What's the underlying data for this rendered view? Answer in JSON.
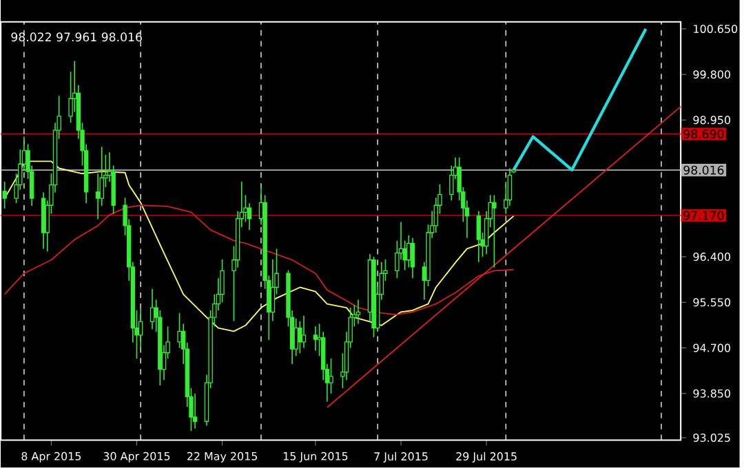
{
  "chart_data": {
    "type": "candlestick",
    "color": "#33ee33",
    "x": [
      "2015-03-27",
      "2015-03-30",
      "2015-03-31",
      "2015-04-01",
      "2015-04-02",
      "2015-04-03",
      "2015-04-06",
      "2015-04-07",
      "2015-04-08",
      "2015-04-09",
      "2015-04-10",
      "2015-04-13",
      "2015-04-14",
      "2015-04-15",
      "2015-04-16",
      "2015-04-17",
      "2015-04-20",
      "2015-04-21",
      "2015-04-22",
      "2015-04-23",
      "2015-04-24",
      "2015-04-27",
      "2015-04-28",
      "2015-04-29",
      "2015-04-30",
      "2015-05-01",
      "2015-05-04",
      "2015-05-05",
      "2015-05-06",
      "2015-05-07",
      "2015-05-08",
      "2015-05-11",
      "2015-05-12",
      "2015-05-13",
      "2015-05-14",
      "2015-05-15",
      "2015-05-18",
      "2015-05-19",
      "2015-05-20",
      "2015-05-21",
      "2015-05-22",
      "2015-05-25",
      "2015-05-26",
      "2015-05-27",
      "2015-05-28",
      "2015-05-29",
      "2015-06-01",
      "2015-06-02",
      "2015-06-03",
      "2015-06-04",
      "2015-06-05",
      "2015-06-08",
      "2015-06-09",
      "2015-06-10",
      "2015-06-11",
      "2015-06-12",
      "2015-06-15",
      "2015-06-16",
      "2015-06-17",
      "2015-06-18",
      "2015-06-19",
      "2015-06-22",
      "2015-06-23",
      "2015-06-24",
      "2015-06-25",
      "2015-06-26",
      "2015-06-29",
      "2015-06-30",
      "2015-07-01",
      "2015-07-02",
      "2015-07-03",
      "2015-07-06",
      "2015-07-07",
      "2015-07-08",
      "2015-07-09",
      "2015-07-10",
      "2015-07-13",
      "2015-07-14",
      "2015-07-15",
      "2015-07-16",
      "2015-07-17",
      "2015-07-20",
      "2015-07-21",
      "2015-07-22",
      "2015-07-23",
      "2015-07-24",
      "2015-07-27",
      "2015-07-28",
      "2015-07-29",
      "2015-07-30",
      "2015-07-31",
      "2015-08-03",
      "2015-08-04",
      "2015-08-05"
    ],
    "ohlc": [
      [
        97.62,
        97.8,
        97.3,
        97.49
      ],
      [
        97.49,
        97.95,
        97.4,
        97.74
      ],
      [
        97.74,
        98.4,
        97.65,
        98.13
      ],
      [
        98.13,
        98.64,
        98.0,
        98.38
      ],
      [
        98.38,
        98.5,
        97.85,
        97.99
      ],
      [
        97.99,
        98.1,
        97.35,
        97.49
      ],
      [
        97.49,
        97.6,
        96.55,
        96.85
      ],
      [
        96.85,
        97.45,
        96.5,
        97.36
      ],
      [
        97.36,
        97.95,
        97.2,
        97.74
      ],
      [
        97.74,
        98.9,
        97.6,
        98.76
      ],
      [
        98.76,
        99.4,
        98.6,
        99.02
      ],
      [
        99.02,
        99.85,
        98.9,
        99.35
      ],
      [
        99.35,
        100.05,
        99.1,
        99.45
      ],
      [
        99.45,
        99.6,
        98.6,
        98.76
      ],
      [
        98.76,
        98.9,
        98.1,
        98.38
      ],
      [
        98.38,
        98.5,
        97.4,
        97.61
      ],
      [
        97.61,
        97.95,
        97.1,
        97.49
      ],
      [
        97.49,
        98.45,
        97.35,
        97.87
      ],
      [
        97.87,
        98.3,
        97.7,
        97.92
      ],
      [
        97.92,
        98.35,
        97.8,
        97.99
      ],
      [
        97.99,
        98.1,
        97.2,
        97.36
      ],
      [
        97.36,
        97.5,
        96.8,
        96.98
      ],
      [
        96.98,
        97.1,
        95.95,
        96.21
      ],
      [
        96.21,
        96.3,
        94.8,
        95.07
      ],
      [
        95.07,
        95.4,
        94.5,
        94.94
      ],
      [
        94.94,
        95.45,
        94.7,
        95.19
      ],
      [
        95.19,
        95.8,
        95.05,
        95.45
      ],
      [
        95.45,
        95.6,
        95.0,
        95.27
      ],
      [
        95.27,
        95.4,
        94.0,
        94.3
      ],
      [
        94.3,
        94.75,
        94.1,
        94.61
      ],
      [
        94.61,
        95.1,
        94.5,
        94.81
      ],
      [
        94.81,
        95.35,
        94.7,
        95.01
      ],
      [
        95.01,
        95.15,
        94.4,
        94.68
      ],
      [
        94.68,
        94.8,
        93.6,
        93.79
      ],
      [
        93.79,
        93.95,
        93.15,
        93.41
      ],
      [
        93.41,
        93.85,
        93.2,
        93.33
      ],
      [
        93.33,
        94.2,
        93.25,
        94.05
      ],
      [
        94.05,
        95.4,
        93.95,
        95.27
      ],
      [
        95.27,
        95.7,
        95.1,
        95.52
      ],
      [
        95.52,
        96.0,
        95.4,
        95.7
      ],
      [
        95.7,
        96.35,
        95.55,
        96.14
      ],
      [
        96.14,
        96.6,
        95.2,
        96.34
      ],
      [
        96.34,
        97.25,
        96.2,
        97.11
      ],
      [
        97.11,
        97.8,
        96.95,
        97.23
      ],
      [
        97.23,
        97.55,
        97.05,
        97.31
      ],
      [
        97.31,
        97.4,
        96.9,
        97.11
      ],
      [
        97.11,
        97.7,
        97.0,
        97.41
      ],
      [
        97.41,
        97.55,
        95.8,
        95.96
      ],
      [
        95.96,
        96.05,
        94.85,
        95.37
      ],
      [
        95.37,
        96.35,
        95.2,
        95.83
      ],
      [
        95.83,
        96.55,
        95.7,
        96.09
      ],
      [
        96.09,
        96.15,
        95.1,
        95.27
      ],
      [
        95.27,
        95.4,
        94.4,
        94.68
      ],
      [
        94.68,
        95.25,
        94.55,
        95.07
      ],
      [
        95.07,
        95.2,
        94.6,
        94.81
      ],
      [
        94.81,
        95.3,
        94.7,
        94.94
      ],
      [
        94.94,
        95.1,
        94.65,
        94.86
      ],
      [
        94.86,
        95.15,
        94.55,
        94.89
      ],
      [
        94.89,
        95.0,
        94.1,
        94.3
      ],
      [
        94.3,
        94.4,
        93.7,
        94.05
      ],
      [
        94.05,
        94.5,
        93.85,
        94.17
      ],
      [
        94.17,
        94.6,
        93.95,
        94.25
      ],
      [
        94.25,
        95.0,
        94.1,
        94.81
      ],
      [
        94.81,
        95.45,
        94.7,
        95.27
      ],
      [
        95.27,
        95.5,
        95.1,
        95.32
      ],
      [
        95.32,
        95.6,
        95.15,
        95.37
      ],
      [
        95.37,
        96.45,
        95.2,
        96.34
      ],
      [
        96.34,
        96.4,
        94.9,
        95.07
      ],
      [
        95.07,
        95.85,
        95.0,
        95.7
      ],
      [
        95.7,
        96.3,
        95.6,
        96.09
      ],
      [
        96.09,
        96.35,
        95.95,
        96.14
      ],
      [
        96.14,
        96.7,
        96.0,
        96.47
      ],
      [
        96.47,
        97.05,
        96.35,
        96.55
      ],
      [
        96.55,
        96.7,
        96.15,
        96.34
      ],
      [
        96.34,
        96.8,
        96.2,
        96.65
      ],
      [
        96.65,
        96.75,
        96.0,
        96.21
      ],
      [
        96.21,
        96.3,
        95.6,
        95.96
      ],
      [
        95.96,
        97.0,
        95.85,
        96.85
      ],
      [
        96.85,
        97.25,
        96.75,
        96.98
      ],
      [
        96.98,
        97.5,
        96.85,
        97.36
      ],
      [
        97.36,
        97.75,
        97.2,
        97.56
      ],
      [
        97.56,
        98.1,
        97.45,
        97.92
      ],
      [
        97.92,
        98.25,
        97.85,
        98.07
      ],
      [
        98.07,
        98.25,
        97.45,
        97.61
      ],
      [
        97.61,
        97.7,
        97.05,
        97.31
      ],
      [
        97.31,
        97.45,
        96.75,
        97.16
      ],
      [
        97.16,
        97.25,
        96.3,
        96.72
      ],
      [
        96.72,
        96.85,
        96.4,
        96.6
      ],
      [
        96.6,
        97.25,
        96.45,
        97.11
      ],
      [
        97.11,
        97.55,
        96.95,
        97.41
      ],
      [
        97.41,
        97.55,
        96.2,
        97.31
      ],
      [
        97.31,
        97.8,
        97.2,
        97.46
      ],
      [
        97.46,
        98.05,
        97.35,
        97.92
      ],
      [
        97.98,
        98.022,
        97.961,
        98.016
      ]
    ],
    "series": [
      {
        "type": "line",
        "color": "#ffff66",
        "x": [
          "2015-03-27",
          "2015-03-31",
          "2015-04-01",
          "2015-04-08",
          "2015-04-10",
          "2015-04-16",
          "2015-04-21",
          "2015-04-27",
          "2015-04-28",
          "2015-05-01",
          "2015-05-07",
          "2015-05-12",
          "2015-05-18",
          "2015-05-21",
          "2015-05-25",
          "2015-05-28",
          "2015-06-01",
          "2015-06-05",
          "2015-06-11",
          "2015-06-15",
          "2015-06-18",
          "2015-06-23",
          "2015-06-25",
          "2015-06-29",
          "2015-07-02",
          "2015-07-07",
          "2015-07-10",
          "2015-07-14",
          "2015-07-16",
          "2015-07-21",
          "2015-07-24",
          "2015-07-28",
          "2015-07-31",
          "2015-08-05"
        ],
        "values": [
          97.49,
          97.99,
          98.18,
          98.18,
          98.05,
          97.95,
          97.99,
          97.97,
          97.74,
          97.41,
          96.47,
          95.7,
          95.27,
          95.07,
          95.01,
          95.12,
          95.45,
          95.63,
          95.83,
          95.75,
          95.52,
          95.45,
          95.27,
          95.19,
          95.12,
          95.37,
          95.4,
          95.52,
          95.83,
          96.29,
          96.55,
          96.65,
          96.85,
          97.16
        ]
      },
      {
        "type": "line",
        "color": "#cc2020",
        "x": [
          "2015-03-27",
          "2015-04-01",
          "2015-04-08",
          "2015-04-14",
          "2015-04-20",
          "2015-04-23",
          "2015-04-27",
          "2015-05-01",
          "2015-05-08",
          "2015-05-14",
          "2015-05-19",
          "2015-05-25",
          "2015-05-28",
          "2015-06-04",
          "2015-06-09",
          "2015-06-15",
          "2015-06-18",
          "2015-06-23",
          "2015-06-26",
          "2015-07-02",
          "2015-07-06",
          "2015-07-10",
          "2015-07-16",
          "2015-07-21",
          "2015-07-27",
          "2015-07-31",
          "2015-08-05"
        ],
        "values": [
          95.7,
          96.09,
          96.34,
          96.72,
          96.98,
          97.18,
          97.31,
          97.36,
          97.34,
          97.23,
          96.9,
          96.7,
          96.65,
          96.47,
          96.34,
          96.09,
          95.78,
          95.58,
          95.45,
          95.35,
          95.32,
          95.37,
          95.52,
          95.73,
          96.04,
          96.14,
          96.16
        ]
      },
      {
        "type": "line",
        "color": "#dd2020",
        "x": [
          "2015-06-18",
          "2015-09-17"
        ],
        "values": [
          93.59,
          99.2
        ]
      },
      {
        "type": "line",
        "color": "#22dddd",
        "x": [
          "2015-08-05",
          "2015-08-10",
          "2015-08-20",
          "2015-09-08"
        ],
        "values": [
          98.02,
          98.64,
          98.02,
          100.65
        ]
      }
    ],
    "xlim": [
      "2015-03-26",
      "2015-09-17"
    ],
    "xticks": [
      {
        "value": "2015-04-08",
        "label": "8 Apr 2015"
      },
      {
        "value": "2015-04-30",
        "label": "30 Apr 2015"
      },
      {
        "value": "2015-05-22",
        "label": "22 May 2015"
      },
      {
        "value": "2015-06-15",
        "label": "15 Jun 2015"
      },
      {
        "value": "2015-07-07",
        "label": "7 Jul 2015"
      },
      {
        "value": "2015-07-29",
        "label": "29 Jul 2015"
      }
    ],
    "ylim": [
      92.98,
      100.78
    ],
    "yticks": [
      {
        "value": 93.025,
        "label": "93.025"
      },
      {
        "value": 93.85,
        "label": "93.850"
      },
      {
        "value": 94.7,
        "label": "94.700"
      },
      {
        "value": 95.55,
        "label": "95.550"
      },
      {
        "value": 96.4,
        "label": "96.400"
      },
      {
        "value": 98.95,
        "label": "98.950"
      },
      {
        "value": 99.8,
        "label": "99.800"
      },
      {
        "value": 100.65,
        "label": "100.650"
      }
    ],
    "ref_lines": [
      {
        "axis": "y",
        "value": 98.69,
        "label": "98.690",
        "color": "#cc0000"
      },
      {
        "axis": "y",
        "value": 97.17,
        "label": "97.170",
        "color": "#cc0000"
      },
      {
        "axis": "y",
        "value": 98.016,
        "label": "98.016",
        "color": "#b0b0b0"
      },
      {
        "axis": "x",
        "value": "2015-04-01",
        "color": "#ffffff",
        "line_style": "dashed"
      },
      {
        "axis": "x",
        "value": "2015-05-01",
        "color": "#ffffff",
        "line_style": "dashed"
      },
      {
        "axis": "x",
        "value": "2015-06-01",
        "color": "#ffffff",
        "line_style": "dashed"
      },
      {
        "axis": "x",
        "value": "2015-07-01",
        "color": "#ffffff",
        "line_style": "dashed"
      },
      {
        "axis": "x",
        "value": "2015-08-03",
        "color": "#ffffff",
        "line_style": "dashed"
      },
      {
        "axis": "x",
        "value": "2015-09-12",
        "color": "#ffffff",
        "line_style": "dashed"
      }
    ],
    "annotations": [
      "98.022 97.961 98.016"
    ]
  }
}
